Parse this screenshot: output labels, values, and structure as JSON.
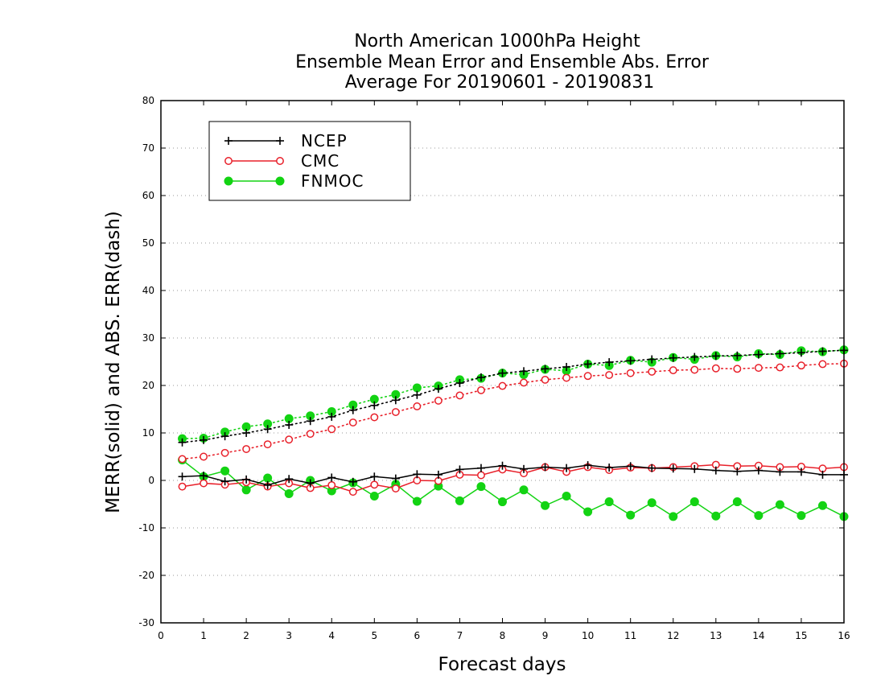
{
  "chart_data": {
    "type": "line",
    "title_lines": [
      "North American 1000hPa Height",
      "Ensemble Mean Error and Ensemble Abs. Error",
      "Average For 20190601 - 20190831"
    ],
    "xlabel": "Forecast days",
    "ylabel": "MERR(solid) and ABS. ERR(dash)",
    "xlim": [
      0,
      16
    ],
    "ylim": [
      -30,
      80
    ],
    "xticks": [
      0,
      1,
      2,
      3,
      4,
      5,
      6,
      7,
      8,
      9,
      10,
      11,
      12,
      13,
      14,
      15,
      16
    ],
    "yticks": [
      -30,
      -20,
      -10,
      0,
      10,
      20,
      30,
      40,
      50,
      60,
      70,
      80
    ],
    "grid": true,
    "legend_position": "top-left",
    "x": [
      0.5,
      1,
      1.5,
      2,
      2.5,
      3,
      3.5,
      4,
      4.5,
      5,
      5.5,
      6,
      6.5,
      7,
      7.5,
      8,
      8.5,
      9,
      9.5,
      10,
      10.5,
      11,
      11.5,
      12,
      12.5,
      13,
      13.5,
      14,
      14.5,
      15,
      15.5,
      16
    ],
    "series": [
      {
        "name": "NCEP",
        "color": "#000000",
        "marker": "plus",
        "merr": [
          0.8,
          1.0,
          -0.2,
          0.2,
          -1.0,
          0.3,
          -0.6,
          0.6,
          -0.3,
          0.8,
          0.4,
          1.3,
          1.2,
          2.3,
          2.6,
          3.1,
          2.4,
          2.8,
          2.6,
          3.2,
          2.7,
          3.0,
          2.6,
          2.5,
          2.4,
          2.1,
          1.9,
          2.1,
          1.8,
          1.8,
          1.2,
          1.2
        ],
        "abs_err": [
          8.0,
          8.5,
          9.3,
          10.0,
          10.8,
          11.7,
          12.5,
          13.4,
          14.8,
          15.8,
          16.9,
          18.0,
          19.3,
          20.5,
          21.7,
          22.6,
          23.0,
          23.5,
          23.9,
          24.5,
          24.9,
          25.2,
          25.5,
          25.8,
          26.0,
          26.2,
          26.3,
          26.5,
          26.7,
          26.9,
          27.2,
          27.4
        ]
      },
      {
        "name": "CMC",
        "color": "#e8202a",
        "marker": "open-circle",
        "merr": [
          -1.3,
          -0.6,
          -0.9,
          -0.4,
          -1.3,
          -0.6,
          -1.6,
          -1.0,
          -2.4,
          -0.9,
          -1.7,
          0.0,
          -0.1,
          1.2,
          1.1,
          2.3,
          1.5,
          2.8,
          1.8,
          2.8,
          2.2,
          2.7,
          2.6,
          2.8,
          3.0,
          3.3,
          3.0,
          3.1,
          2.8,
          2.9,
          2.5,
          2.8
        ],
        "abs_err": [
          4.5,
          5.0,
          5.8,
          6.6,
          7.6,
          8.6,
          9.8,
          10.8,
          12.2,
          13.3,
          14.4,
          15.6,
          16.8,
          17.9,
          19.0,
          19.9,
          20.6,
          21.2,
          21.6,
          22.0,
          22.2,
          22.6,
          22.9,
          23.2,
          23.3,
          23.6,
          23.5,
          23.7,
          23.8,
          24.2,
          24.5,
          24.6
        ]
      },
      {
        "name": "FNMOC",
        "color": "#13d313",
        "marker": "filled-circle",
        "merr": [
          4.3,
          0.8,
          2.0,
          -2.0,
          0.5,
          -2.8,
          0.0,
          -2.2,
          -0.5,
          -3.3,
          -0.8,
          -4.4,
          -1.2,
          -4.3,
          -1.3,
          -4.5,
          -2.0,
          -5.3,
          -3.3,
          -6.6,
          -4.5,
          -7.3,
          -4.7,
          -7.6,
          -4.5,
          -7.5,
          -4.5,
          -7.4,
          -5.1,
          -7.4,
          -5.3,
          -7.6
        ],
        "abs_err": [
          8.8,
          8.9,
          10.2,
          11.3,
          11.9,
          13.0,
          13.6,
          14.5,
          15.9,
          17.1,
          18.1,
          19.5,
          19.9,
          21.2,
          21.5,
          22.6,
          22.3,
          23.4,
          23.1,
          24.5,
          24.2,
          25.3,
          24.9,
          25.9,
          25.5,
          26.3,
          26.0,
          26.7,
          26.5,
          27.3,
          27.1,
          27.5
        ]
      }
    ]
  }
}
